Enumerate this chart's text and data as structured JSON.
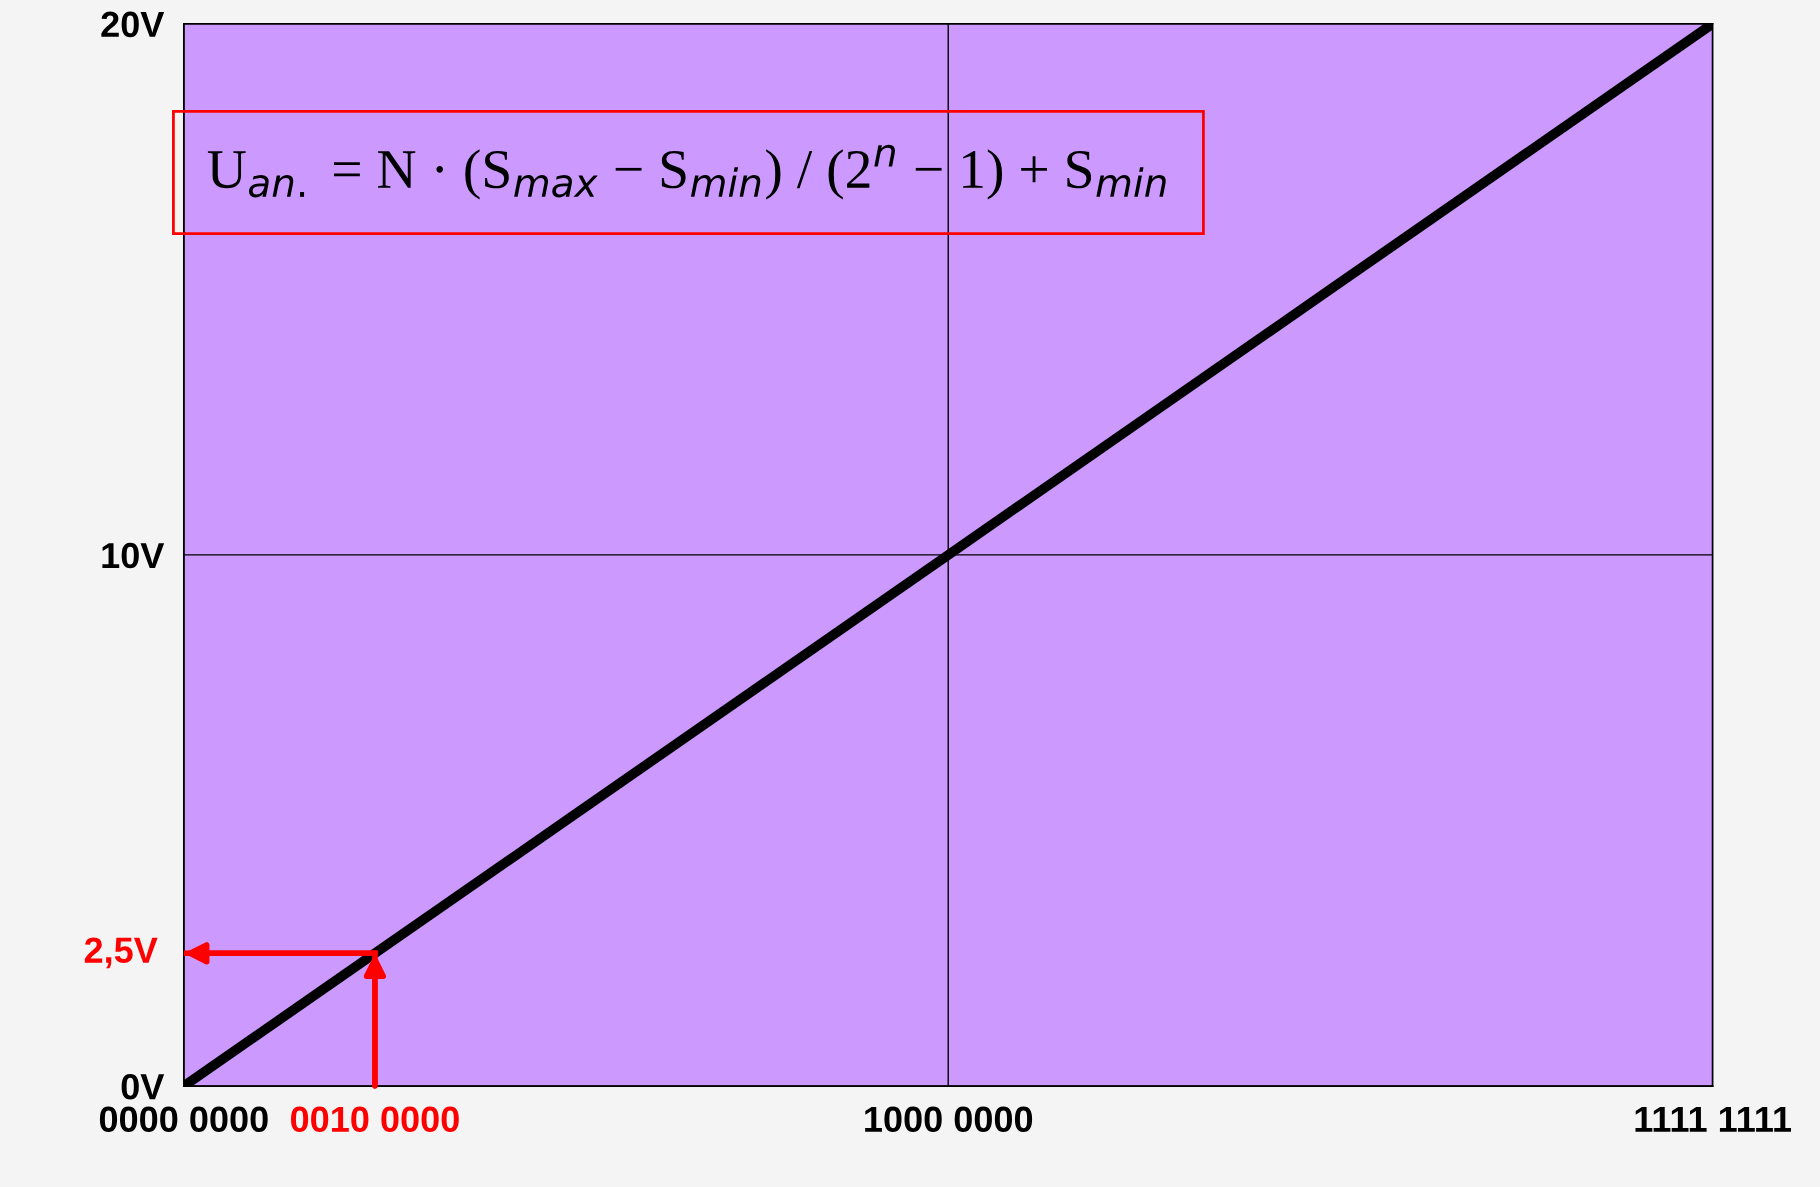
{
  "chart_data": {
    "type": "line",
    "categories": [
      "0000 0000",
      "0010 0000",
      null,
      null,
      "1000 0000",
      null,
      null,
      null,
      "1111 1111"
    ],
    "series": [
      {
        "color": "#000000",
        "values": [
          0,
          2.5,
          5,
          7.5,
          10,
          12.5,
          15,
          17.5,
          20
        ]
      }
    ],
    "ylim": [
      0,
      20
    ],
    "yticks": [
      {
        "value": 0,
        "label": "0V"
      },
      {
        "value": 10,
        "label": "10V"
      },
      {
        "value": 20,
        "label": "20V"
      }
    ],
    "grid": true,
    "ref_lines": [
      {
        "axis": "x",
        "value": "0010 0000",
        "color": "#ff0000"
      },
      {
        "axis": "y",
        "value": 2.5,
        "label": "2,5V",
        "color": "#ff0000"
      }
    ],
    "annotations": [
      "U$_{an.}$ = N · (S$_{max}$ − S$_{min}$) / (2$^{n}$ − 1) + S$_{min}$"
    ]
  }
}
